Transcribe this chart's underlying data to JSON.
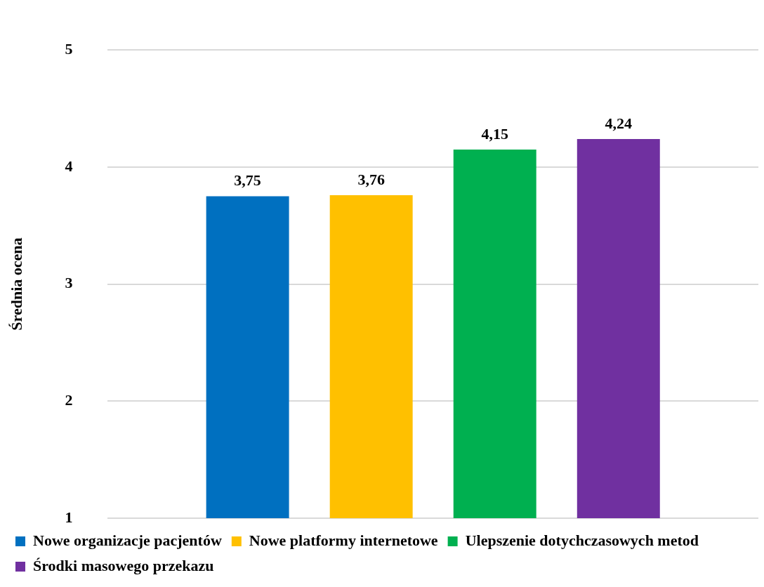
{
  "chart_data": {
    "type": "bar",
    "ylabel": "Średnia ocena",
    "categories": [
      null
    ],
    "series": [
      {
        "name": "Nowe organizacje pacjentów",
        "color": "#0070c0",
        "values": [
          3.75
        ],
        "value_labels": [
          "3,75"
        ]
      },
      {
        "name": "Nowe platformy internetowe",
        "color": "#ffc000",
        "values": [
          3.76
        ],
        "value_labels": [
          "3,76"
        ]
      },
      {
        "name": "Ulepszenie dotychczasowych metod",
        "color": "#00b050",
        "values": [
          4.15
        ],
        "value_labels": [
          "4,15"
        ]
      },
      {
        "name": "Środki masowego przekazu",
        "color": "#7030a0",
        "values": [
          4.24
        ],
        "value_labels": [
          "4,24"
        ]
      }
    ],
    "ylim": [
      1,
      5
    ],
    "yticks": [
      1,
      2,
      3,
      4,
      5
    ],
    "grid": "y",
    "legend": "bottom",
    "tick_labels": "y"
  }
}
